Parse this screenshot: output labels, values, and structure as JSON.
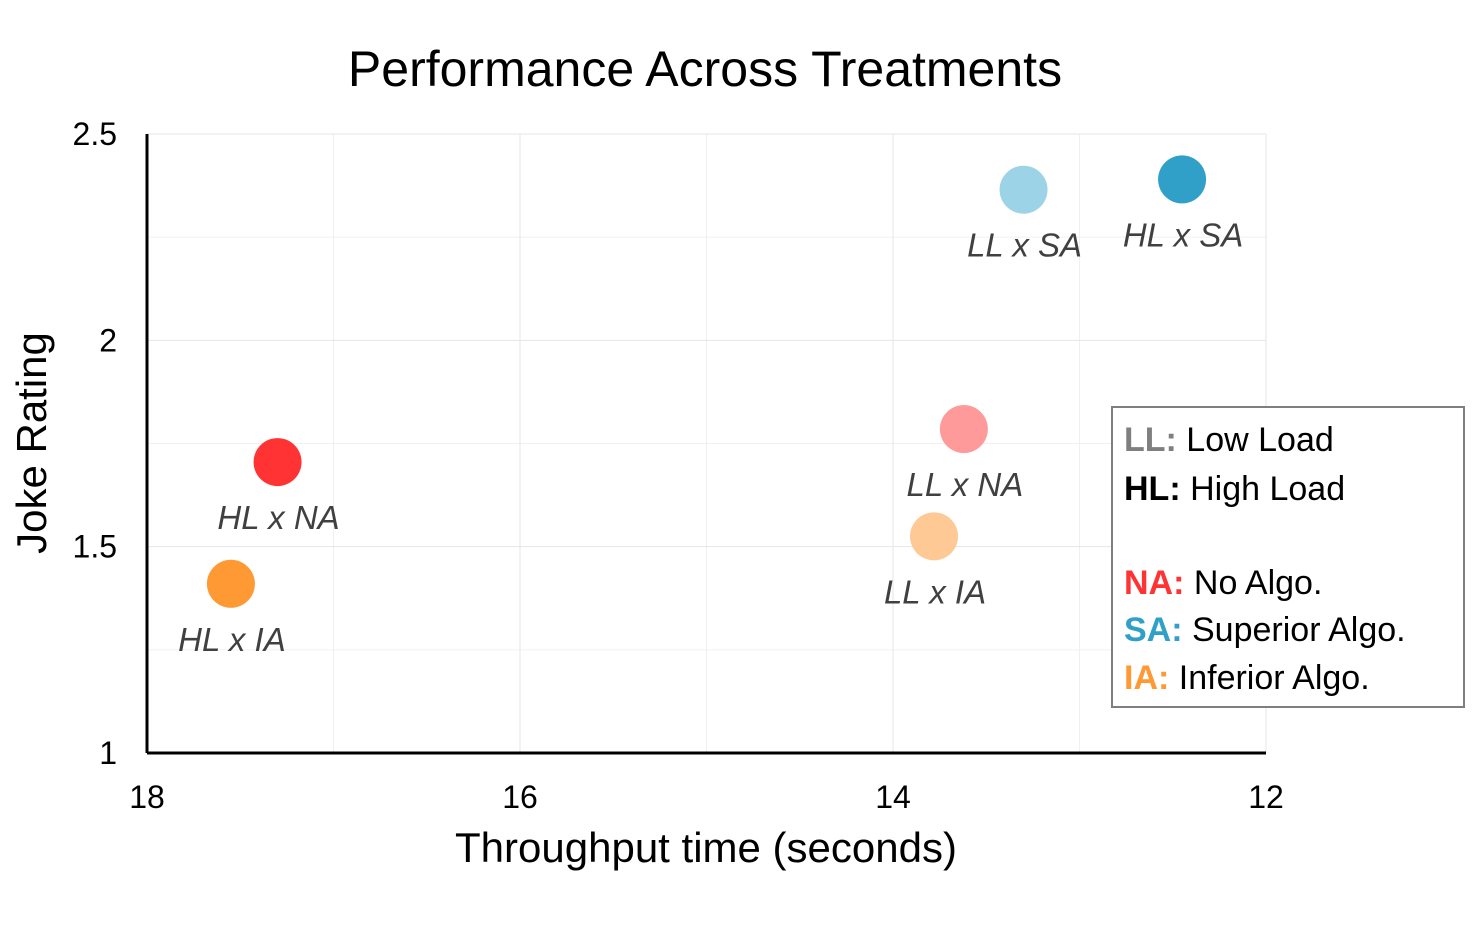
{
  "chart_data": {
    "type": "scatter",
    "title": "Performance Across Treatments",
    "xlabel": "Throughput time (seconds)",
    "ylabel": "Joke Rating",
    "xlim": [
      18,
      12
    ],
    "x_reversed": true,
    "ylim": [
      1,
      2.5
    ],
    "x_ticks": [
      "18",
      "16",
      "14",
      "12"
    ],
    "y_ticks": [
      "2.5",
      "2",
      "1.5",
      "1"
    ],
    "x_tick_values": [
      18,
      16,
      14,
      12
    ],
    "y_tick_values": [
      2.5,
      2,
      1.5,
      1
    ],
    "grid": true,
    "points": [
      {
        "label": "HL x SA",
        "x": 12.45,
        "y": 2.39,
        "color": "#31a0c9"
      },
      {
        "label": "LL x SA",
        "x": 13.3,
        "y": 2.365,
        "color": "#9dd3e6"
      },
      {
        "label": "LL x NA",
        "x": 13.62,
        "y": 1.785,
        "color": "#ff9a9a"
      },
      {
        "label": "HL x NA",
        "x": 17.3,
        "y": 1.705,
        "color": "#ff3333"
      },
      {
        "label": "LL x IA",
        "x": 13.78,
        "y": 1.525,
        "color": "#ffc996"
      },
      {
        "label": "HL x IA",
        "x": 17.55,
        "y": 1.41,
        "color": "#ff9933"
      }
    ],
    "legend": {
      "placement": "right",
      "entries": [
        {
          "abbr": "LL:",
          "text": "Low Load",
          "color": "#7f7f7f"
        },
        {
          "abbr": "HL:",
          "text": "High Load",
          "color": "#000000"
        },
        {
          "abbr": "NA:",
          "text": "No Algo.",
          "color": "#ff3333"
        },
        {
          "abbr": "SA:",
          "text": "Superior Algo.",
          "color": "#31a0c9"
        },
        {
          "abbr": "IA:",
          "text": "Inferior Algo.",
          "color": "#ff9933"
        }
      ]
    }
  }
}
